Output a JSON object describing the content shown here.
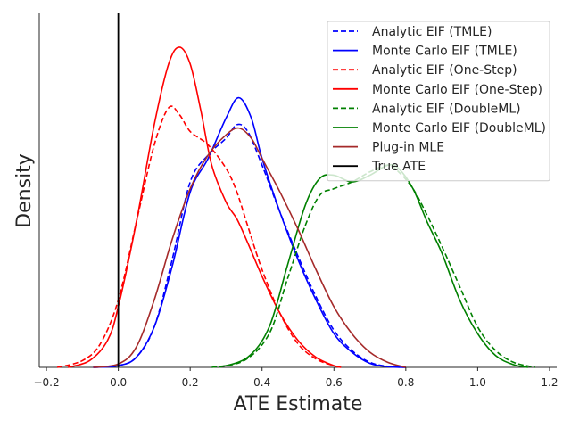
{
  "chart_data": {
    "type": "line",
    "title": "",
    "xlabel": "ATE Estimate",
    "ylabel": "Density",
    "xlim": [
      -0.22,
      1.22
    ],
    "ylim": [
      0,
      1
    ],
    "xticks": [
      -0.2,
      0.0,
      0.2,
      0.4,
      0.6,
      0.8,
      1.0,
      1.2
    ],
    "xtick_labels": [
      "−0.2",
      "0.0",
      "0.2",
      "0.4",
      "0.6",
      "0.8",
      "1.0",
      "1.2"
    ],
    "yticks_shown": false,
    "grid": false,
    "legend_position": "top-right",
    "true_ate": 0.0,
    "series": [
      {
        "name": "Analytic EIF (TMLE)",
        "color": "#0000ff",
        "style": "dashed",
        "points": [
          [
            -0.07,
            0.0
          ],
          [
            0.0,
            0.005
          ],
          [
            0.05,
            0.03
          ],
          [
            0.1,
            0.12
          ],
          [
            0.15,
            0.32
          ],
          [
            0.2,
            0.55
          ],
          [
            0.25,
            0.63
          ],
          [
            0.3,
            0.68
          ],
          [
            0.33,
            0.72
          ],
          [
            0.36,
            0.7
          ],
          [
            0.4,
            0.6
          ],
          [
            0.45,
            0.46
          ],
          [
            0.5,
            0.33
          ],
          [
            0.55,
            0.21
          ],
          [
            0.6,
            0.11
          ],
          [
            0.65,
            0.05
          ],
          [
            0.7,
            0.015
          ],
          [
            0.75,
            0.003
          ],
          [
            0.8,
            0.0
          ]
        ]
      },
      {
        "name": "Monte Carlo EIF (TMLE)",
        "color": "#0000ff",
        "style": "solid",
        "points": [
          [
            -0.07,
            0.0
          ],
          [
            0.0,
            0.005
          ],
          [
            0.05,
            0.03
          ],
          [
            0.1,
            0.12
          ],
          [
            0.15,
            0.3
          ],
          [
            0.2,
            0.52
          ],
          [
            0.25,
            0.62
          ],
          [
            0.3,
            0.74
          ],
          [
            0.335,
            0.8
          ],
          [
            0.37,
            0.74
          ],
          [
            0.4,
            0.62
          ],
          [
            0.45,
            0.46
          ],
          [
            0.5,
            0.32
          ],
          [
            0.55,
            0.2
          ],
          [
            0.6,
            0.1
          ],
          [
            0.65,
            0.045
          ],
          [
            0.7,
            0.012
          ],
          [
            0.75,
            0.002
          ],
          [
            0.8,
            0.0
          ]
        ]
      },
      {
        "name": "Analytic EIF (One-Step)",
        "color": "#ff0000",
        "style": "dashed",
        "points": [
          [
            -0.17,
            0.0
          ],
          [
            -0.1,
            0.02
          ],
          [
            -0.05,
            0.07
          ],
          [
            0.0,
            0.2
          ],
          [
            0.05,
            0.43
          ],
          [
            0.1,
            0.66
          ],
          [
            0.14,
            0.77
          ],
          [
            0.17,
            0.75
          ],
          [
            0.2,
            0.7
          ],
          [
            0.25,
            0.66
          ],
          [
            0.3,
            0.59
          ],
          [
            0.33,
            0.52
          ],
          [
            0.36,
            0.42
          ],
          [
            0.4,
            0.29
          ],
          [
            0.45,
            0.16
          ],
          [
            0.5,
            0.07
          ],
          [
            0.55,
            0.025
          ],
          [
            0.6,
            0.005
          ],
          [
            0.62,
            0.0
          ]
        ]
      },
      {
        "name": "Monte Carlo EIF (One-Step)",
        "color": "#ff0000",
        "style": "solid",
        "points": [
          [
            -0.14,
            0.0
          ],
          [
            -0.08,
            0.02
          ],
          [
            -0.03,
            0.08
          ],
          [
            0.0,
            0.18
          ],
          [
            0.05,
            0.43
          ],
          [
            0.1,
            0.72
          ],
          [
            0.14,
            0.9
          ],
          [
            0.17,
            0.95
          ],
          [
            0.2,
            0.9
          ],
          [
            0.23,
            0.76
          ],
          [
            0.26,
            0.6
          ],
          [
            0.3,
            0.49
          ],
          [
            0.33,
            0.44
          ],
          [
            0.36,
            0.37
          ],
          [
            0.4,
            0.27
          ],
          [
            0.45,
            0.16
          ],
          [
            0.5,
            0.08
          ],
          [
            0.55,
            0.03
          ],
          [
            0.6,
            0.005
          ],
          [
            0.62,
            0.0
          ]
        ]
      },
      {
        "name": "Analytic EIF (DoubleML)",
        "color": "#008000",
        "style": "dashed",
        "points": [
          [
            0.26,
            0.0
          ],
          [
            0.35,
            0.02
          ],
          [
            0.42,
            0.1
          ],
          [
            0.47,
            0.26
          ],
          [
            0.52,
            0.42
          ],
          [
            0.56,
            0.51
          ],
          [
            0.6,
            0.53
          ],
          [
            0.65,
            0.55
          ],
          [
            0.7,
            0.58
          ],
          [
            0.75,
            0.6
          ],
          [
            0.78,
            0.58
          ],
          [
            0.82,
            0.53
          ],
          [
            0.86,
            0.45
          ],
          [
            0.9,
            0.36
          ],
          [
            0.95,
            0.24
          ],
          [
            1.0,
            0.12
          ],
          [
            1.05,
            0.05
          ],
          [
            1.1,
            0.015
          ],
          [
            1.16,
            0.0
          ]
        ]
      },
      {
        "name": "Monte Carlo EIF (DoubleML)",
        "color": "#008000",
        "style": "solid",
        "points": [
          [
            0.28,
            0.0
          ],
          [
            0.36,
            0.03
          ],
          [
            0.42,
            0.12
          ],
          [
            0.47,
            0.3
          ],
          [
            0.52,
            0.48
          ],
          [
            0.56,
            0.56
          ],
          [
            0.6,
            0.57
          ],
          [
            0.65,
            0.55
          ],
          [
            0.7,
            0.57
          ],
          [
            0.75,
            0.6
          ],
          [
            0.78,
            0.59
          ],
          [
            0.82,
            0.53
          ],
          [
            0.86,
            0.43
          ],
          [
            0.9,
            0.34
          ],
          [
            0.95,
            0.2
          ],
          [
            1.0,
            0.1
          ],
          [
            1.05,
            0.035
          ],
          [
            1.1,
            0.008
          ],
          [
            1.14,
            0.0
          ]
        ]
      },
      {
        "name": "Plug-in MLE",
        "color": "#a52a2a",
        "style": "solid",
        "points": [
          [
            -0.07,
            0.0
          ],
          [
            0.0,
            0.01
          ],
          [
            0.05,
            0.06
          ],
          [
            0.1,
            0.2
          ],
          [
            0.15,
            0.38
          ],
          [
            0.2,
            0.53
          ],
          [
            0.25,
            0.63
          ],
          [
            0.3,
            0.69
          ],
          [
            0.335,
            0.71
          ],
          [
            0.37,
            0.68
          ],
          [
            0.4,
            0.62
          ],
          [
            0.45,
            0.52
          ],
          [
            0.5,
            0.41
          ],
          [
            0.55,
            0.29
          ],
          [
            0.6,
            0.18
          ],
          [
            0.65,
            0.1
          ],
          [
            0.7,
            0.045
          ],
          [
            0.75,
            0.015
          ],
          [
            0.8,
            0.0
          ]
        ]
      }
    ],
    "reference_lines": [
      {
        "name": "True ATE",
        "color": "#000000",
        "style": "solid",
        "x": 0.0
      }
    ]
  }
}
